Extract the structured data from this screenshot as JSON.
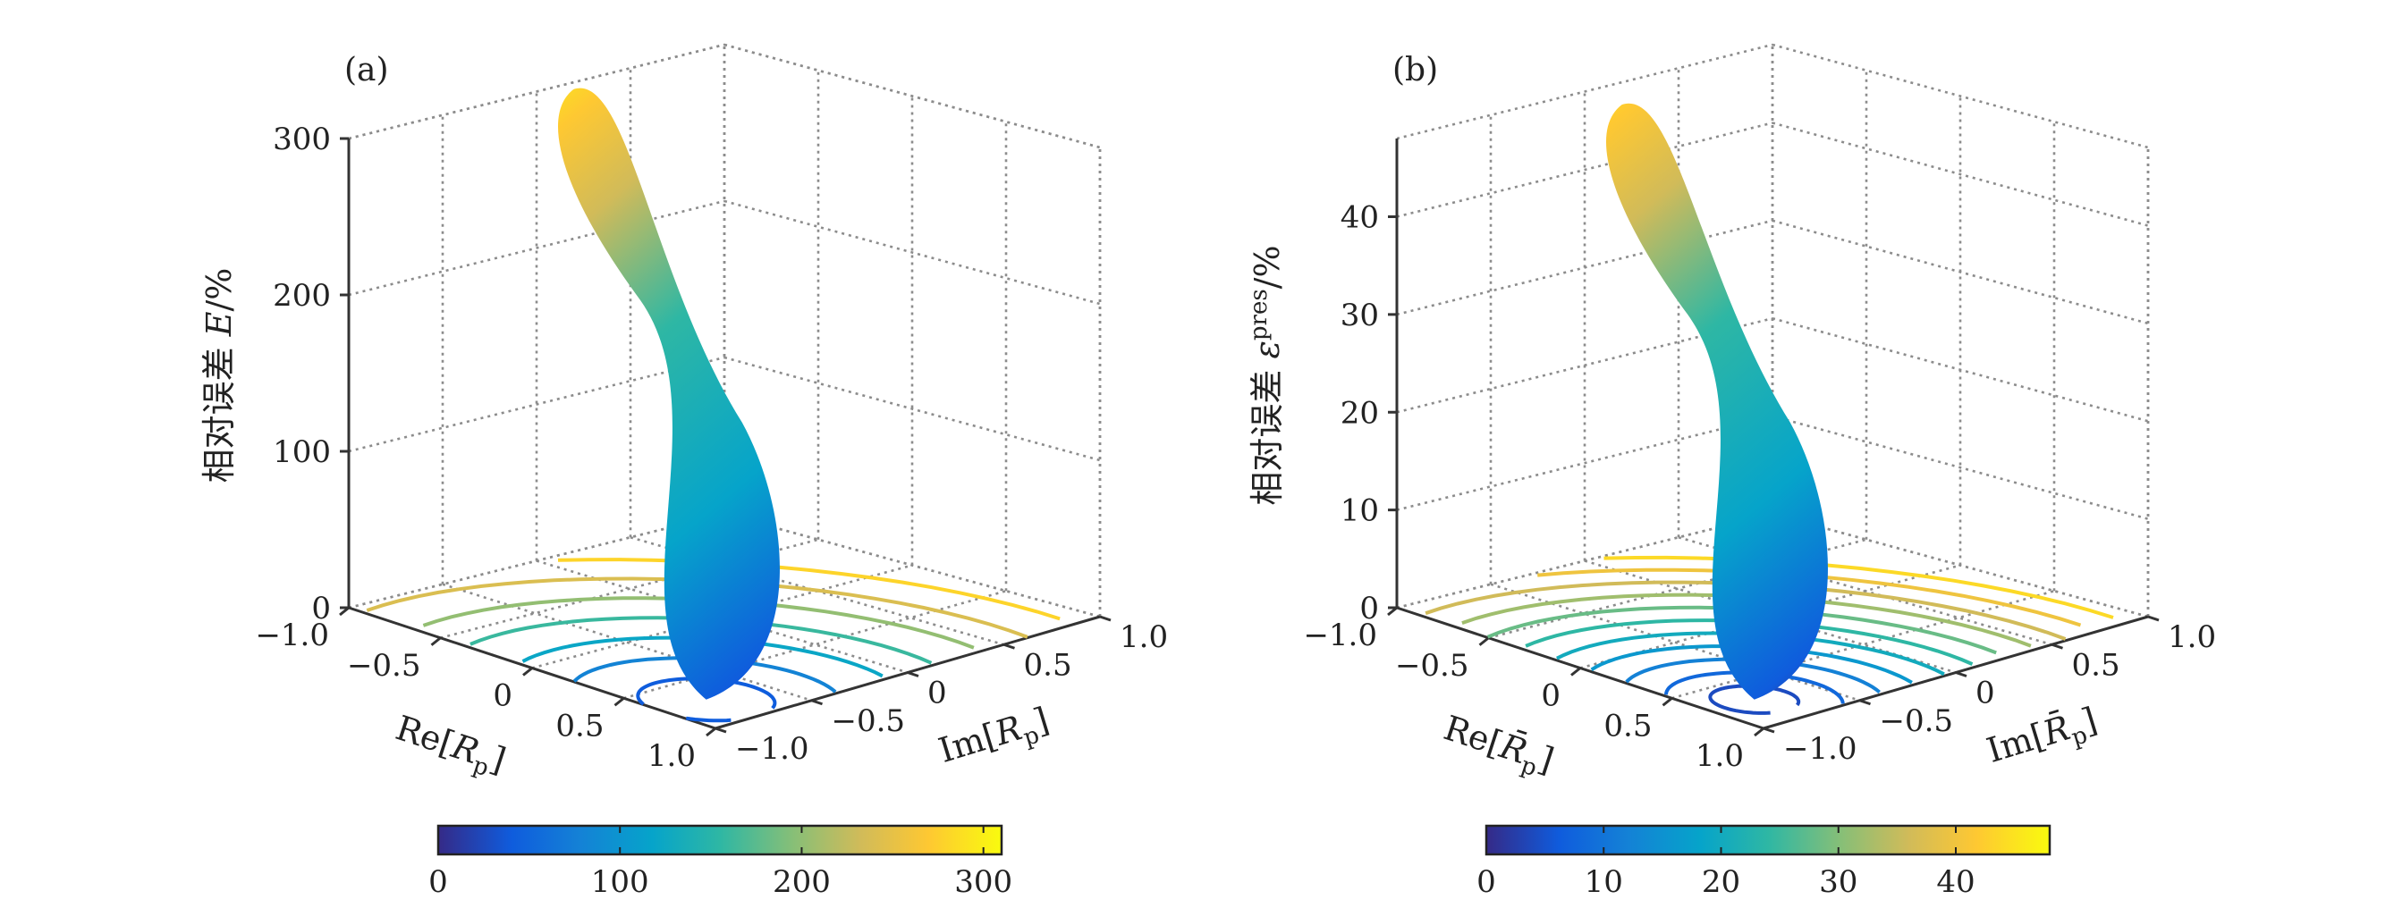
{
  "chart_data": [
    {
      "type": "surface3d",
      "panel_label": "(a)",
      "zlabel_main": "相对误差 ",
      "zlabel_sym": "E",
      "zlabel_unit": "/%",
      "xlabel_main": "Re[",
      "xlabel_sym": "R",
      "xlabel_sub": "p",
      "xlabel_close": "]",
      "ylabel_main": "Im[",
      "ylabel_sym": "R",
      "ylabel_sub": "p",
      "ylabel_close": "]",
      "x_ticks": [
        "−1.0",
        "−0.5",
        "0",
        "0.5",
        "1.0"
      ],
      "y_ticks": [
        "−1.0",
        "−0.5",
        "0",
        "0.5",
        "1.0"
      ],
      "z_ticks": [
        "0",
        "100",
        "200",
        "300"
      ],
      "xlim": [
        -1,
        1
      ],
      "ylim": [
        -1,
        1
      ],
      "zlim": [
        0,
        300
      ],
      "zmax_surface": 310,
      "contour_levels": [
        40,
        80,
        120,
        160,
        200,
        240,
        280
      ],
      "colorbar": {
        "ticks": [
          "0",
          "100",
          "200",
          "300"
        ],
        "range": [
          0,
          310
        ]
      },
      "grid": true
    },
    {
      "type": "surface3d",
      "panel_label": "(b)",
      "zlabel_main": "相对误差 ",
      "zlabel_sym": "ε",
      "zlabel_sup": "pres",
      "zlabel_unit": "/%",
      "xlabel_main": "Re[",
      "xlabel_sym": "R̄",
      "xlabel_sub": "p",
      "xlabel_close": "]",
      "ylabel_main": "Im[",
      "ylabel_sym": "R̄",
      "ylabel_sub": "p",
      "ylabel_close": "]",
      "x_ticks": [
        "−1.0",
        "−0.5",
        "0",
        "0.5",
        "1.0"
      ],
      "y_ticks": [
        "−1.0",
        "−0.5",
        "0",
        "0.5",
        "1.0"
      ],
      "z_ticks": [
        "0",
        "10",
        "20",
        "30",
        "40"
      ],
      "xlim": [
        -1,
        1
      ],
      "ylim": [
        -1,
        1
      ],
      "zlim": [
        0,
        48
      ],
      "zmax_surface": 48,
      "contour_levels": [
        4,
        8,
        12,
        16,
        20,
        24,
        28,
        32,
        36,
        40,
        44
      ],
      "colorbar": {
        "ticks": [
          "0",
          "10",
          "20",
          "30",
          "40"
        ],
        "range": [
          0,
          48
        ]
      },
      "grid": true
    }
  ]
}
